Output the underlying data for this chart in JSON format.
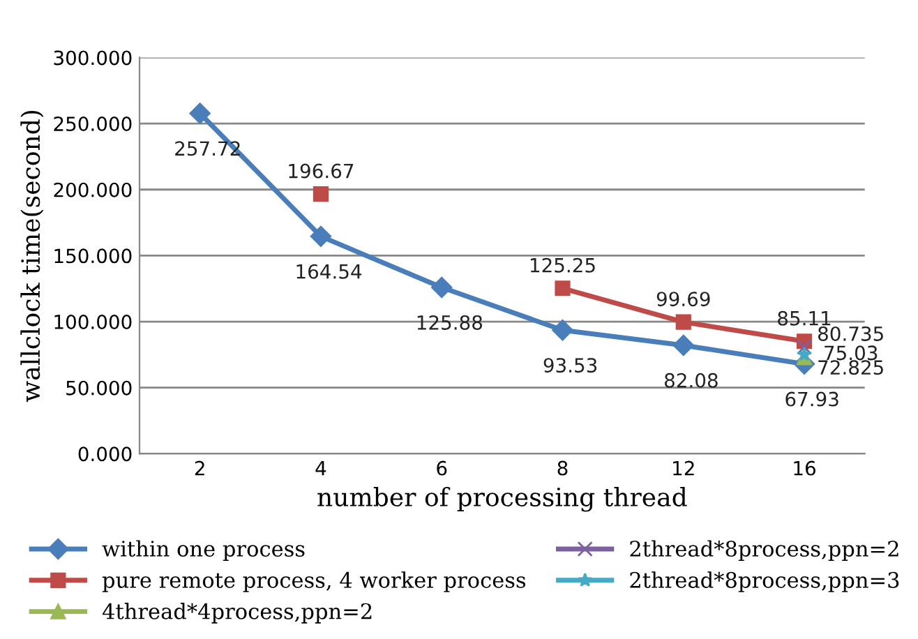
{
  "chart_data": {
    "type": "line",
    "xlabel": "number of processing thread",
    "ylabel": "wallclock time(second)",
    "categories": [
      "2",
      "4",
      "6",
      "8",
      "12",
      "16"
    ],
    "ylim": [
      0,
      300
    ],
    "yticks": [
      {
        "value": 0,
        "label": "0.000"
      },
      {
        "value": 50,
        "label": "50.000"
      },
      {
        "value": 100,
        "label": "100.000"
      },
      {
        "value": 150,
        "label": "150.000"
      },
      {
        "value": 200,
        "label": "200.000"
      },
      {
        "value": 250,
        "label": "250.000"
      },
      {
        "value": 300,
        "label": "300.000"
      }
    ],
    "grid": "y",
    "legend": "bottom",
    "data_labels": true,
    "series": [
      {
        "name": "within one process",
        "color": "#4a7ebb",
        "marker": "diamond",
        "values": [
          257.72,
          164.54,
          125.88,
          93.53,
          82.08,
          67.93
        ]
      },
      {
        "name": "pure remote process, 4 worker process",
        "color": "#be4b48",
        "marker": "square",
        "values": [
          null,
          196.67,
          null,
          125.25,
          99.69,
          85.11
        ]
      },
      {
        "name": "4thread*4process,ppn=2",
        "color": "#98b954",
        "marker": "triangle",
        "values": [
          null,
          null,
          null,
          null,
          null,
          72.825
        ]
      },
      {
        "name": "2thread*8process,ppn=2",
        "color": "#7d60a0",
        "marker": "cross",
        "values": [
          null,
          null,
          null,
          null,
          null,
          80.735
        ]
      },
      {
        "name": "2thread*8process,ppn=3",
        "color": "#46aac5",
        "marker": "star",
        "values": [
          null,
          null,
          null,
          null,
          null,
          75.03
        ]
      }
    ]
  }
}
